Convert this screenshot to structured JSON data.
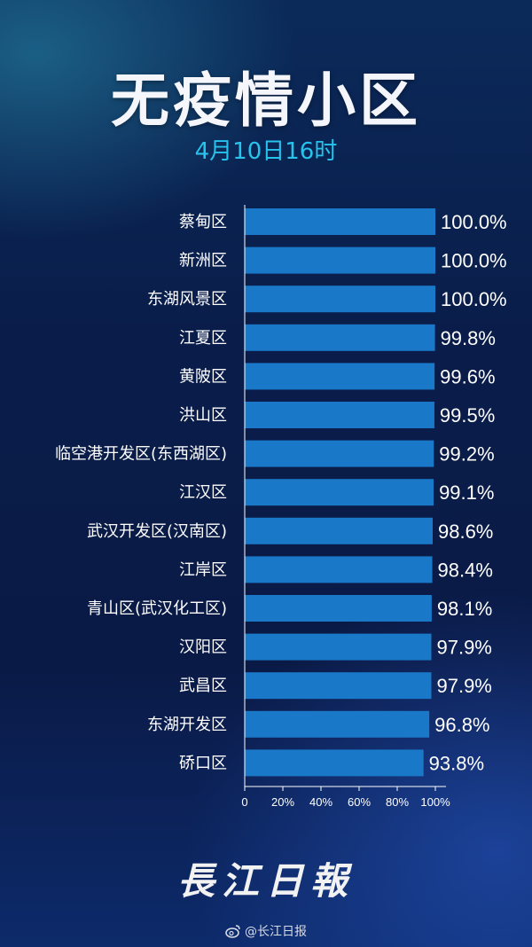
{
  "header": {
    "title": "无疫情小区",
    "subtitle": "4月10日16时"
  },
  "chart_data": {
    "type": "bar",
    "orientation": "horizontal",
    "title": "无疫情小区",
    "subtitle": "4月10日16时",
    "categories": [
      "蔡甸区",
      "新洲区",
      "东湖风景区",
      "江夏区",
      "黄陂区",
      "洪山区",
      "临空港开发区(东西湖区)",
      "江汉区",
      "武汉开发区(汉南区)",
      "江岸区",
      "青山区(武汉化工区)",
      "汉阳区",
      "武昌区",
      "东湖开发区",
      "硚口区"
    ],
    "values": [
      100.0,
      100.0,
      100.0,
      99.8,
      99.6,
      99.5,
      99.2,
      99.1,
      98.6,
      98.4,
      98.1,
      97.9,
      97.9,
      96.8,
      93.8
    ],
    "value_labels": [
      "100.0%",
      "100.0%",
      "100.0%",
      "99.8%",
      "99.6%",
      "99.5%",
      "99.2%",
      "99.1%",
      "98.6%",
      "98.4%",
      "98.1%",
      "97.9%",
      "97.9%",
      "96.8%",
      "93.8%"
    ],
    "xlim": [
      0,
      100
    ],
    "x_ticks": [
      "0",
      "20%",
      "40%",
      "60%",
      "80%",
      "100%"
    ],
    "bar_color": "#1a78c8",
    "grid": false
  },
  "footer": {
    "brand": "長江日報",
    "weibo_handle": "@长江日报"
  }
}
